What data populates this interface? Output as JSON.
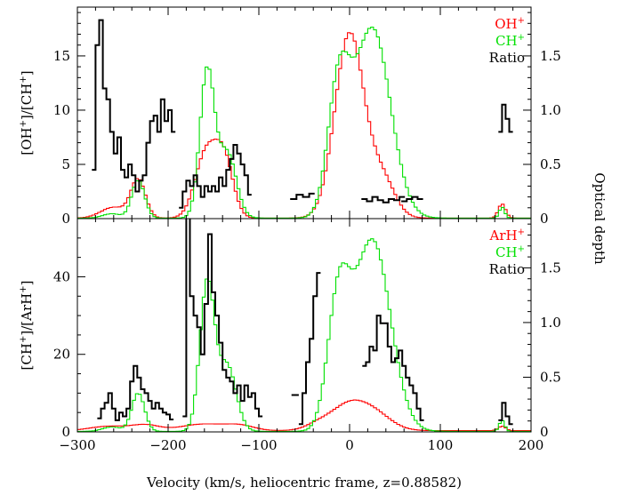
{
  "chart_data": [
    {
      "panel": "top",
      "type": "line",
      "xlabel": "Velocity (km/s, heliocentric frame, z=0.88582)",
      "ylabel_left": {
        "main": "[OH",
        "sup": "+",
        "mid": "]/[CH",
        "sup2": "+",
        "end": "]"
      },
      "ylabel_right": "Optical depth",
      "xlim": [
        -300,
        200
      ],
      "ylim_left": [
        0,
        19.5
      ],
      "ylim_right": [
        0,
        1.95
      ],
      "x_ticks": [
        -300,
        -200,
        -100,
        0,
        100,
        200
      ],
      "y_ticks_left": [
        0,
        5,
        10,
        15
      ],
      "y_ticks_right": [
        0,
        0.5,
        1,
        1.5
      ],
      "y_ticks_right_labels": [
        "0",
        "0.5",
        "1.0",
        "1.5"
      ],
      "legend": [
        {
          "base": "OH",
          "sup": "+",
          "color": "#ff0000"
        },
        {
          "base": "CH",
          "sup": "+",
          "color": "#00e000"
        },
        {
          "base": "Ratio",
          "sup": "",
          "color": "#000000"
        }
      ],
      "series": [
        {
          "name": "OH+",
          "axis": "right",
          "color": "#ff0000",
          "profile": {
            "base": 0.005,
            "components": [
              [
                -260,
                14,
                0.1
              ],
              [
                -233,
                8,
                0.35
              ],
              [
                -158,
                12,
                0.6
              ],
              [
                -138,
                10,
                0.5
              ],
              [
                0,
                16,
                1.7
              ],
              [
                36,
                14,
                0.35
              ],
              [
                168,
                4,
                0.13
              ]
            ]
          }
        },
        {
          "name": "CH+",
          "axis": "right",
          "color": "#00e000",
          "profile": {
            "base": 0.005,
            "components": [
              [
                -262,
                10,
                0.04
              ],
              [
                -233,
                7,
                0.35
              ],
              [
                -157,
                8,
                1.35
              ],
              [
                -135,
                10,
                0.6
              ],
              [
                -12,
                12,
                1.15
              ],
              [
                25,
                20,
                1.75
              ],
              [
                168,
                3,
                0.1
              ]
            ]
          }
        },
        {
          "name": "Ratio",
          "axis": "left",
          "color": "#000000",
          "segments": [
            [
              [
                -282,
                4.5
              ],
              [
                -278,
                16
              ],
              [
                -274,
                18.3
              ],
              [
                -270,
                12
              ],
              [
                -266,
                11
              ],
              [
                -262,
                8
              ],
              [
                -258,
                6
              ],
              [
                -254,
                7.5
              ],
              [
                -250,
                4.5
              ],
              [
                -246,
                3.8
              ],
              [
                -242,
                5
              ],
              [
                -238,
                4
              ],
              [
                -234,
                2.5
              ],
              [
                -230,
                3.5
              ],
              [
                -226,
                4
              ],
              [
                -222,
                7
              ],
              [
                -218,
                9
              ],
              [
                -214,
                9.5
              ],
              [
                -210,
                8
              ],
              [
                -206,
                11
              ],
              [
                -202,
                9
              ],
              [
                -198,
                10
              ],
              [
                -194,
                8
              ]
            ],
            [
              [
                -186,
                1
              ],
              [
                -182,
                2.5
              ],
              [
                -178,
                3.5
              ],
              [
                -174,
                3
              ],
              [
                -170,
                4
              ],
              [
                -166,
                3
              ],
              [
                -162,
                2
              ],
              [
                -158,
                3
              ],
              [
                -154,
                2.5
              ],
              [
                -150,
                3
              ],
              [
                -146,
                2.5
              ],
              [
                -142,
                3.8
              ],
              [
                -138,
                3
              ],
              [
                -134,
                4.5
              ],
              [
                -130,
                5.5
              ],
              [
                -126,
                6.8
              ],
              [
                -122,
                6
              ],
              [
                -118,
                5
              ],
              [
                -114,
                4
              ],
              [
                -110,
                2.2
              ]
            ],
            [
              [
                -62,
                1.8
              ],
              [
                -55,
                2.2
              ],
              [
                -48,
                2.0
              ],
              [
                -42,
                2.3
              ]
            ],
            [
              [
                16,
                1.8
              ],
              [
                22,
                1.6
              ],
              [
                28,
                2.0
              ],
              [
                34,
                1.7
              ],
              [
                40,
                1.5
              ],
              [
                46,
                1.8
              ],
              [
                52,
                1.7
              ],
              [
                58,
                2.0
              ]
            ],
            [
              [
                60,
                1.6
              ],
              [
                66,
                1.8
              ],
              [
                72,
                2.0
              ],
              [
                78,
                1.8
              ]
            ],
            [
              [
                166,
                8
              ],
              [
                170,
                10.5
              ],
              [
                174,
                9.2
              ],
              [
                178,
                8
              ]
            ]
          ]
        }
      ]
    },
    {
      "panel": "bottom",
      "type": "line",
      "xlabel": "Velocity (km/s, heliocentric frame, z=0.88582)",
      "ylabel_left": {
        "main": "[CH",
        "sup": "+",
        "mid": "]/[ArH",
        "sup2": "+",
        "end": "]"
      },
      "ylabel_right": "Optical depth",
      "xlim": [
        -300,
        200
      ],
      "ylim_left": [
        0,
        55
      ],
      "ylim_right": [
        0,
        1.95
      ],
      "x_ticks": [
        -300,
        -200,
        -100,
        0,
        100,
        200
      ],
      "x_tick_labels": [
        "−300",
        "−200",
        "−100",
        "0",
        "100",
        "200"
      ],
      "y_ticks_left": [
        0,
        20,
        40
      ],
      "y_ticks_right": [
        0,
        0.5,
        1,
        1.5
      ],
      "y_ticks_right_labels": [
        "0",
        "0.5",
        "1.0",
        "1.5"
      ],
      "legend": [
        {
          "base": "ArH",
          "sup": "+",
          "color": "#ff0000"
        },
        {
          "base": "CH",
          "sup": "+",
          "color": "#00e000"
        },
        {
          "base": "Ratio",
          "sup": "",
          "color": "#000000"
        }
      ],
      "series": [
        {
          "name": "ArH+",
          "axis": "right",
          "color": "#ff0000",
          "profile": {
            "base": 0.012,
            "components": [
              [
                -265,
                20,
                0.04
              ],
              [
                -225,
                15,
                0.05
              ],
              [
                -160,
                25,
                0.06
              ],
              [
                -120,
                15,
                0.04
              ],
              [
                -35,
                14,
                0.05
              ],
              [
                0,
                20,
                0.24
              ],
              [
                30,
                18,
                0.12
              ],
              [
                168,
                4,
                0.04
              ]
            ]
          }
        },
        {
          "name": "CH+",
          "axis": "right",
          "color": "#00e000",
          "profile": {
            "base": 0.005,
            "components": [
              [
                -262,
                10,
                0.04
              ],
              [
                -233,
                7,
                0.35
              ],
              [
                -157,
                8,
                1.35
              ],
              [
                -135,
                10,
                0.6
              ],
              [
                -12,
                12,
                1.15
              ],
              [
                25,
                20,
                1.75
              ],
              [
                168,
                3,
                0.1
              ]
            ]
          }
        },
        {
          "name": "Ratio",
          "axis": "left",
          "color": "#000000",
          "segments": [
            [
              [
                -276,
                3.5
              ],
              [
                -272,
                6
              ],
              [
                -268,
                7.5
              ],
              [
                -264,
                10
              ],
              [
                -260,
                6
              ],
              [
                -256,
                3
              ],
              [
                -252,
                5
              ],
              [
                -248,
                4
              ],
              [
                -244,
                6
              ],
              [
                -240,
                13
              ],
              [
                -236,
                17
              ],
              [
                -232,
                14
              ],
              [
                -228,
                11
              ],
              [
                -224,
                10
              ],
              [
                -220,
                8
              ],
              [
                -216,
                6
              ],
              [
                -212,
                7.5
              ],
              [
                -208,
                6
              ],
              [
                -204,
                5
              ],
              [
                -200,
                4.5
              ],
              [
                -196,
                3.2
              ]
            ],
            [
              [
                -182,
                4
              ],
              [
                -178,
                56
              ],
              [
                -174,
                35
              ],
              [
                -170,
                30
              ],
              [
                -166,
                27
              ],
              [
                -162,
                20
              ],
              [
                -158,
                33
              ],
              [
                -154,
                51
              ],
              [
                -150,
                36
              ],
              [
                -146,
                30
              ],
              [
                -142,
                23
              ],
              [
                -138,
                16
              ],
              [
                -134,
                14
              ],
              [
                -130,
                13
              ],
              [
                -126,
                10
              ],
              [
                -122,
                12
              ],
              [
                -118,
                8
              ],
              [
                -114,
                12
              ],
              [
                -110,
                9
              ],
              [
                -106,
                10
              ],
              [
                -102,
                6
              ],
              [
                -98,
                4
              ]
            ],
            [
              [
                -62,
                9.5
              ],
              [
                -58,
                9.5
              ]
            ],
            [
              [
                -54,
                2
              ],
              [
                -50,
                10
              ],
              [
                -46,
                18
              ],
              [
                -42,
                24
              ],
              [
                -38,
                35
              ],
              [
                -34,
                41
              ]
            ],
            [
              [
                16,
                17
              ],
              [
                20,
                18
              ],
              [
                24,
                22
              ],
              [
                28,
                21
              ],
              [
                32,
                30
              ],
              [
                36,
                28
              ],
              [
                40,
                28
              ],
              [
                44,
                22
              ],
              [
                48,
                18
              ],
              [
                52,
                19
              ],
              [
                56,
                21
              ],
              [
                60,
                17
              ],
              [
                64,
                14
              ],
              [
                68,
                12
              ],
              [
                72,
                10
              ],
              [
                76,
                6
              ],
              [
                80,
                3
              ]
            ],
            [
              [
                166,
                3
              ],
              [
                170,
                7.5
              ],
              [
                174,
                4
              ],
              [
                178,
                2
              ]
            ]
          ]
        }
      ]
    }
  ]
}
